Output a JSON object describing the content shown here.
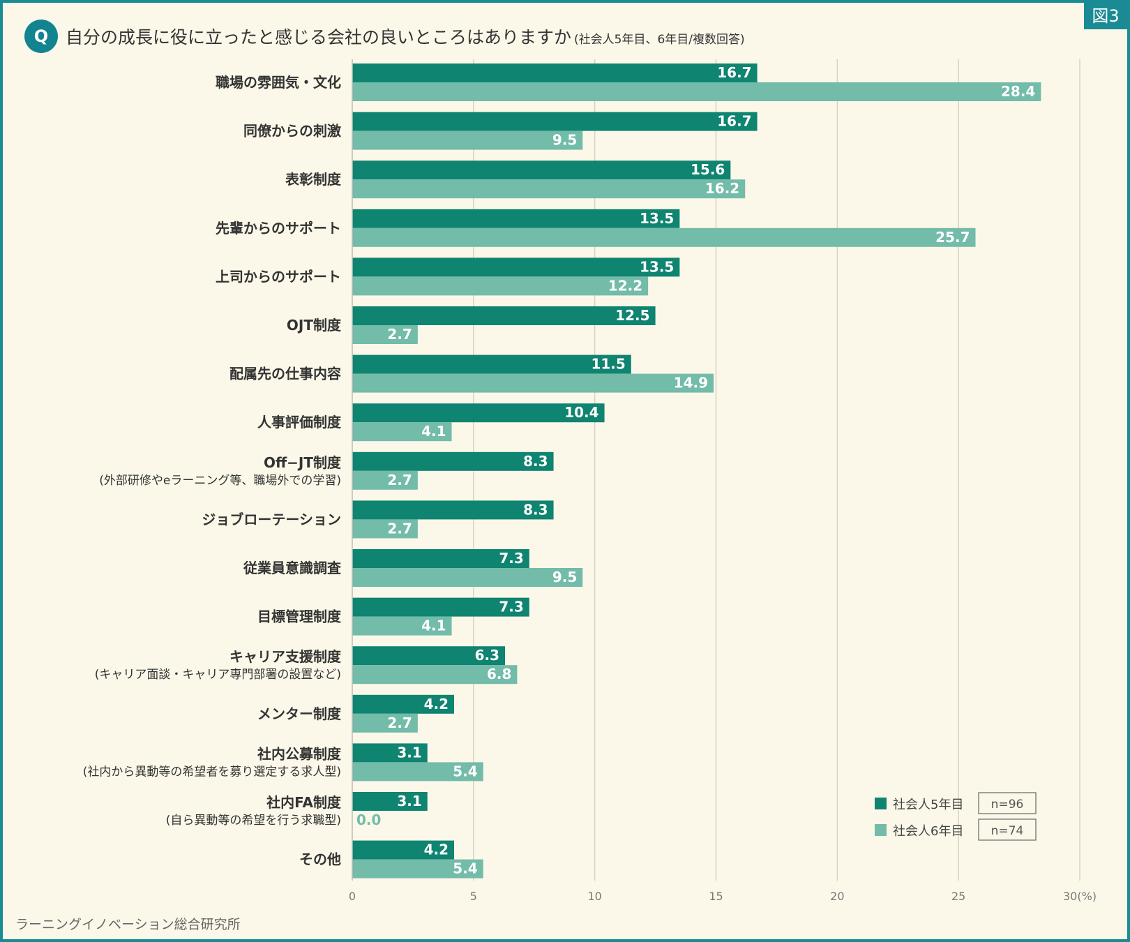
{
  "figure_label": "図3",
  "q_marker": "Q",
  "title": "自分の成長に役に立ったと感じる会社の良いところはありますか",
  "subtitle": "(社会人5年目、6年目/複数回答)",
  "source": "ラーニングイノベーション総合研究所",
  "colors": {
    "series1": "#0f8470",
    "series2": "#72bca9",
    "grid": "#d6d3c4",
    "frame": "#1a8b95"
  },
  "chart_data": {
    "type": "bar",
    "orientation": "horizontal",
    "title": "自分の成長に役に立ったと感じる会社の良いところはありますか",
    "xlabel": "",
    "ylabel": "",
    "unit_label": "(%)",
    "xlim": [
      0,
      30
    ],
    "ticks": [
      0,
      5,
      10,
      15,
      20,
      25,
      30
    ],
    "categories": [
      {
        "label": "職場の雰囲気・文化",
        "note": ""
      },
      {
        "label": "同僚からの刺激",
        "note": ""
      },
      {
        "label": "表彰制度",
        "note": ""
      },
      {
        "label": "先輩からのサポート",
        "note": ""
      },
      {
        "label": "上司からのサポート",
        "note": ""
      },
      {
        "label": "OJT制度",
        "note": ""
      },
      {
        "label": "配属先の仕事内容",
        "note": ""
      },
      {
        "label": "人事評価制度",
        "note": ""
      },
      {
        "label": "Off−JT制度",
        "note": "(外部研修やeラーニング等、職場外での学習)"
      },
      {
        "label": "ジョブローテーション",
        "note": ""
      },
      {
        "label": "従業員意識調査",
        "note": ""
      },
      {
        "label": "目標管理制度",
        "note": ""
      },
      {
        "label": "キャリア支援制度",
        "note": "(キャリア面談・キャリア専門部署の設置など)"
      },
      {
        "label": "メンター制度",
        "note": ""
      },
      {
        "label": "社内公募制度",
        "note": "(社内から異動等の希望者を募り選定する求人型)"
      },
      {
        "label": "社内FA制度",
        "note": "(自ら異動等の希望を行う求職型)"
      },
      {
        "label": "その他",
        "note": ""
      }
    ],
    "series": [
      {
        "name": "社会人5年目",
        "n": "n=96",
        "values": [
          16.7,
          16.7,
          15.6,
          13.5,
          13.5,
          12.5,
          11.5,
          10.4,
          8.3,
          8.3,
          7.3,
          7.3,
          6.3,
          4.2,
          3.1,
          3.1,
          4.2
        ]
      },
      {
        "name": "社会人6年目",
        "n": "n=74",
        "values": [
          28.4,
          9.5,
          16.2,
          25.7,
          12.2,
          2.7,
          14.9,
          4.1,
          2.7,
          2.7,
          9.5,
          4.1,
          6.8,
          2.7,
          5.4,
          0.0,
          5.4
        ]
      }
    ],
    "legend_position": "bottom-right",
    "grid": true
  }
}
